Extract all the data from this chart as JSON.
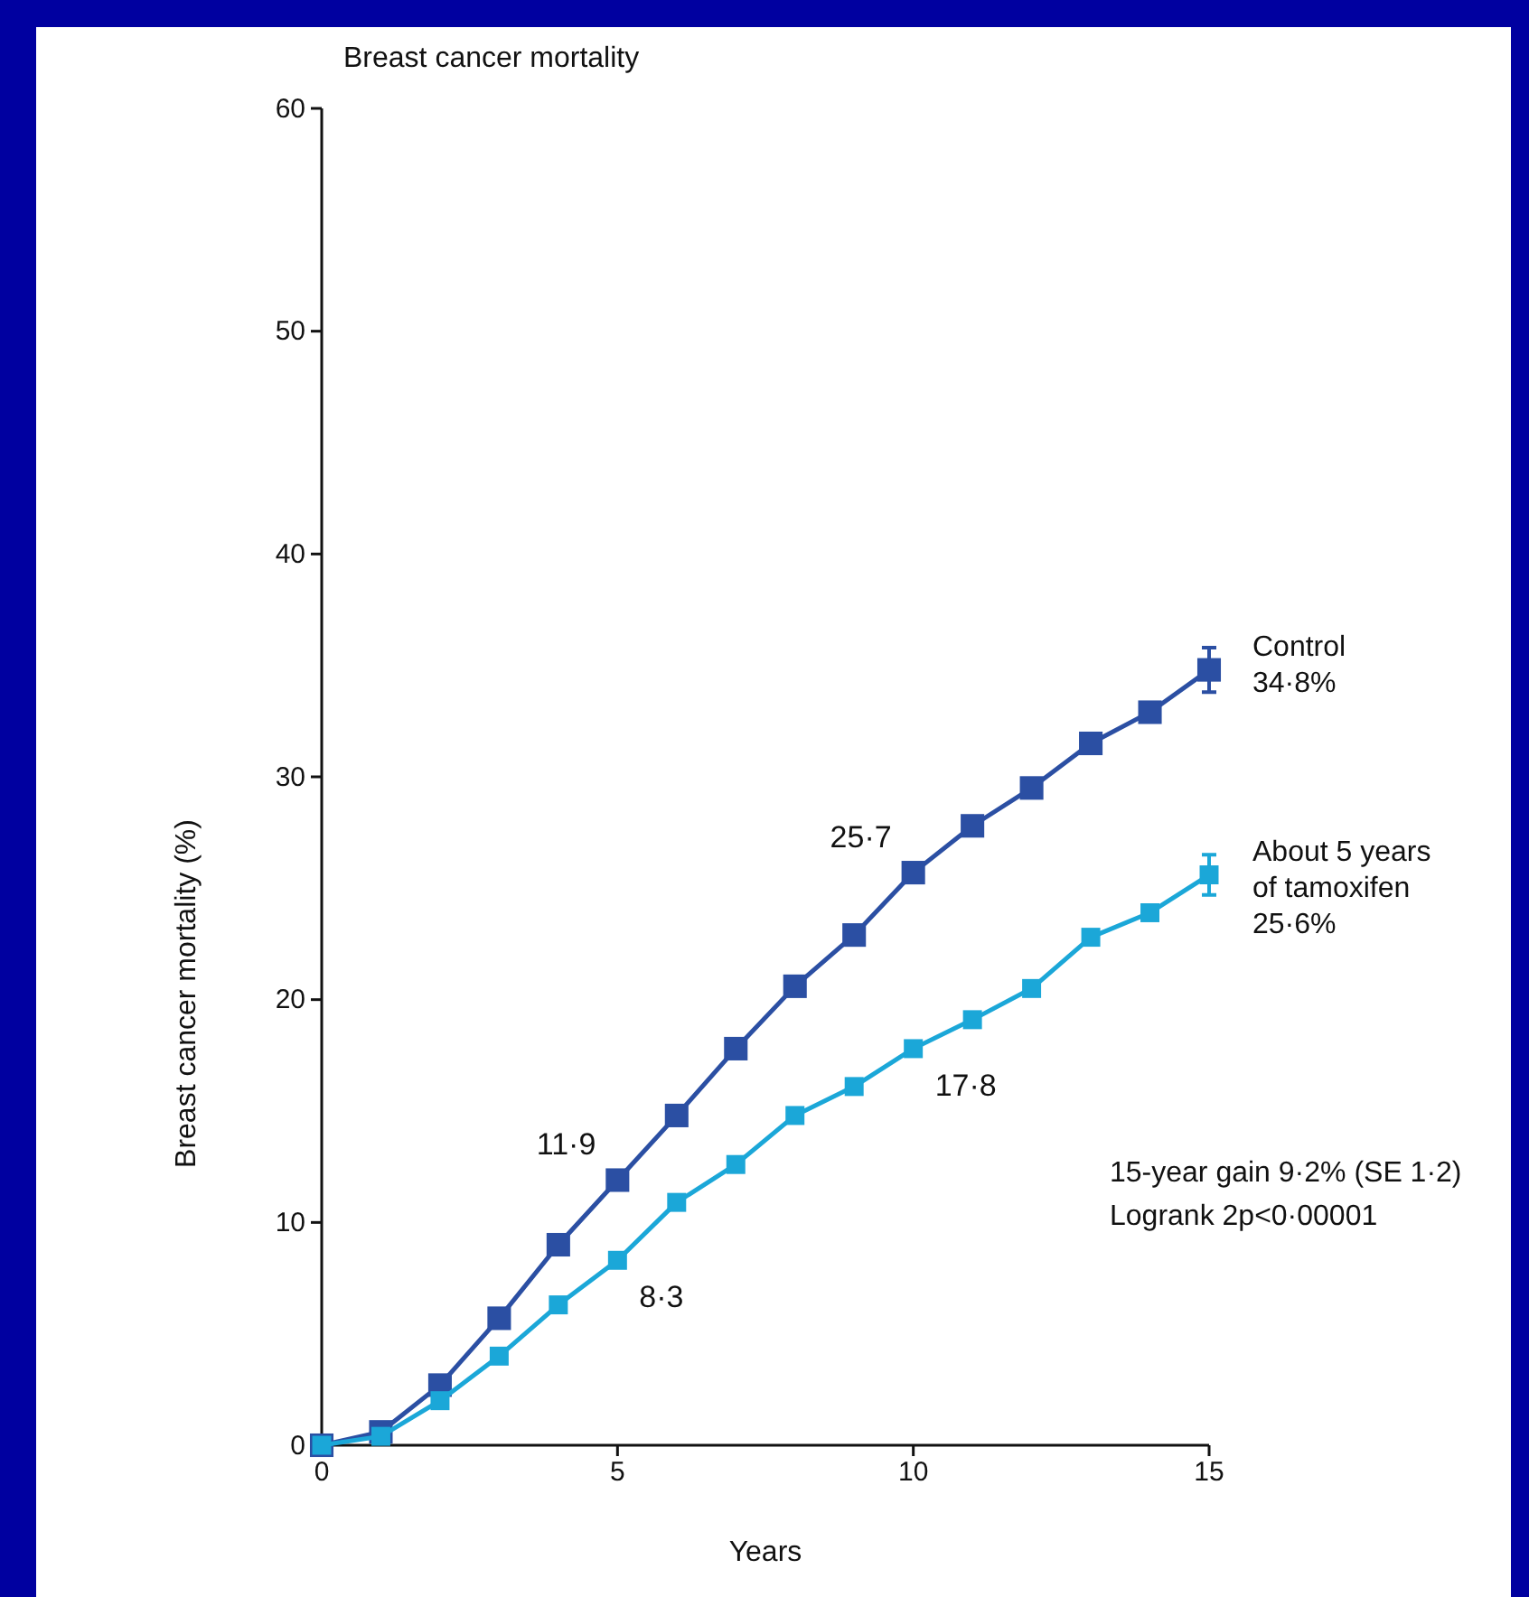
{
  "chart_data": {
    "type": "line",
    "title": "Breast cancer mortality",
    "xlabel": "Years",
    "ylabel": "Breast cancer mortality (%)",
    "xlim": [
      0,
      15
    ],
    "xticks": [
      0,
      5,
      10,
      15
    ],
    "ylim": [
      0,
      60
    ],
    "yticks": [
      0,
      10,
      20,
      30,
      40,
      50,
      60
    ],
    "x": [
      0,
      1,
      2,
      3,
      4,
      5,
      6,
      7,
      8,
      9,
      10,
      11,
      12,
      13,
      14,
      15
    ],
    "series": [
      {
        "name": "Control",
        "color": "#2b4fa3",
        "values": [
          0,
          0.6,
          2.7,
          5.7,
          9.0,
          11.9,
          14.8,
          17.8,
          20.6,
          22.9,
          25.7,
          27.8,
          29.5,
          31.5,
          32.9,
          34.8
        ],
        "errors": [
          null,
          null,
          null,
          null,
          null,
          null,
          null,
          null,
          null,
          null,
          null,
          null,
          null,
          null,
          null,
          1.0
        ]
      },
      {
        "name": "About 5 years of tamoxifen",
        "color": "#1ba7d8",
        "values": [
          0,
          0.4,
          2.0,
          4.0,
          6.3,
          8.3,
          10.9,
          12.6,
          14.8,
          16.1,
          17.8,
          19.1,
          20.5,
          22.8,
          23.9,
          25.6
        ],
        "errors": [
          null,
          null,
          null,
          null,
          null,
          null,
          null,
          null,
          null,
          null,
          null,
          null,
          null,
          null,
          null,
          0.9
        ]
      }
    ],
    "marker": "square",
    "grid": false,
    "annotations": [
      {
        "text": "11·9",
        "x": 5,
        "y": 11.9
      },
      {
        "text": "25·7",
        "x": 10,
        "y": 25.7
      },
      {
        "text": "8·3",
        "x": 5,
        "y": 8.3
      },
      {
        "text": "17·8",
        "x": 10,
        "y": 17.8
      },
      {
        "text": "34·8%",
        "x": 15,
        "y": 34.8
      },
      {
        "text": "25·6%",
        "x": 15,
        "y": 25.6
      },
      "15-year gain 9·2% (SE 1·2)",
      "Logrank 2p<0·00001"
    ]
  }
}
